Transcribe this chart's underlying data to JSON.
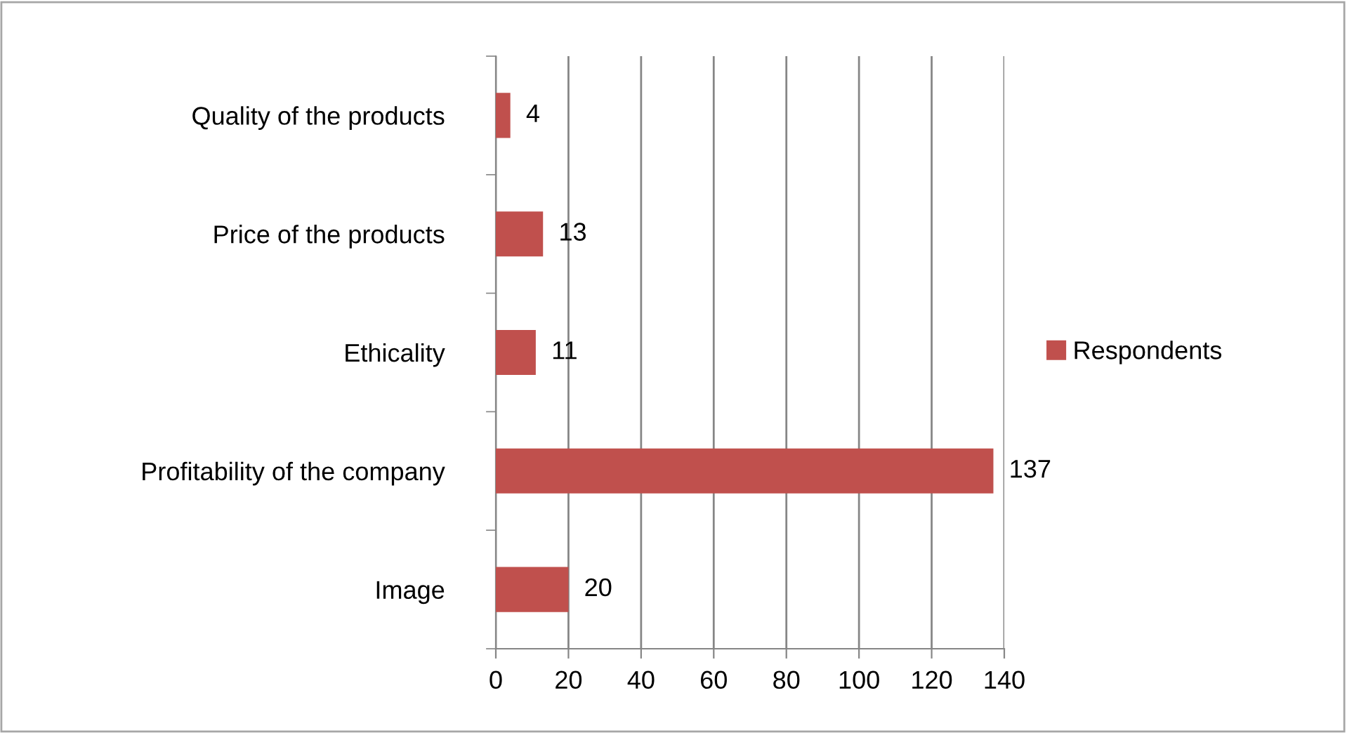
{
  "chart_data": {
    "type": "bar",
    "orientation": "horizontal",
    "categories": [
      "Quality of the products",
      "Price of the products",
      "Ethicality",
      "Profitability of the company",
      "Image"
    ],
    "series": [
      {
        "name": "Respondents",
        "color": "#c0504d",
        "values": [
          4,
          13,
          11,
          137,
          20
        ]
      }
    ],
    "xlim": [
      0,
      140
    ],
    "xticks": [
      0,
      20,
      40,
      60,
      80,
      100,
      120,
      140
    ],
    "grid": "x",
    "legend": "right",
    "data_labels": true
  }
}
